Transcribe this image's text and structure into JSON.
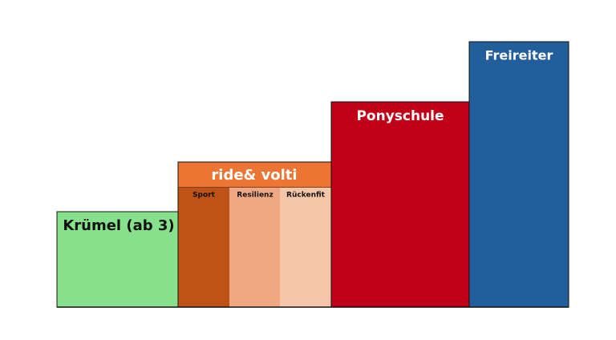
{
  "blocks": [
    {
      "label": "Krümel (ab 3)"
    },
    {
      "label": "ride& volti",
      "parts": [
        "Sport",
        "Resilienz",
        "Rückenfit"
      ]
    },
    {
      "label": "Ponyschule"
    },
    {
      "label": "Freireiter"
    }
  ]
}
